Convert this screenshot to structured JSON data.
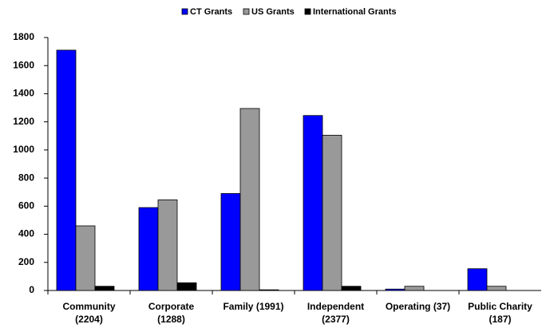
{
  "chart_data": {
    "type": "bar",
    "categories": [
      "Community\n(2204)",
      "Corporate\n(1288)",
      "Family (1991)",
      "Independent\n(2377)",
      "Operating (37)",
      "Public Charity\n(187)"
    ],
    "series": [
      {
        "name": "CT Grants",
        "color": "#0000ff",
        "values": [
          1710,
          590,
          690,
          1245,
          10,
          155
        ]
      },
      {
        "name": "US Grants",
        "color": "#999999",
        "values": [
          460,
          645,
          1295,
          1105,
          30,
          30
        ]
      },
      {
        "name": "International Grants",
        "color": "#000000",
        "values": [
          30,
          55,
          5,
          30,
          0,
          0
        ]
      }
    ],
    "ylim": [
      0,
      1800
    ],
    "yticks": [
      0,
      200,
      400,
      600,
      800,
      1000,
      1200,
      1400,
      1600,
      1800
    ],
    "grid": false,
    "legend": "top"
  }
}
